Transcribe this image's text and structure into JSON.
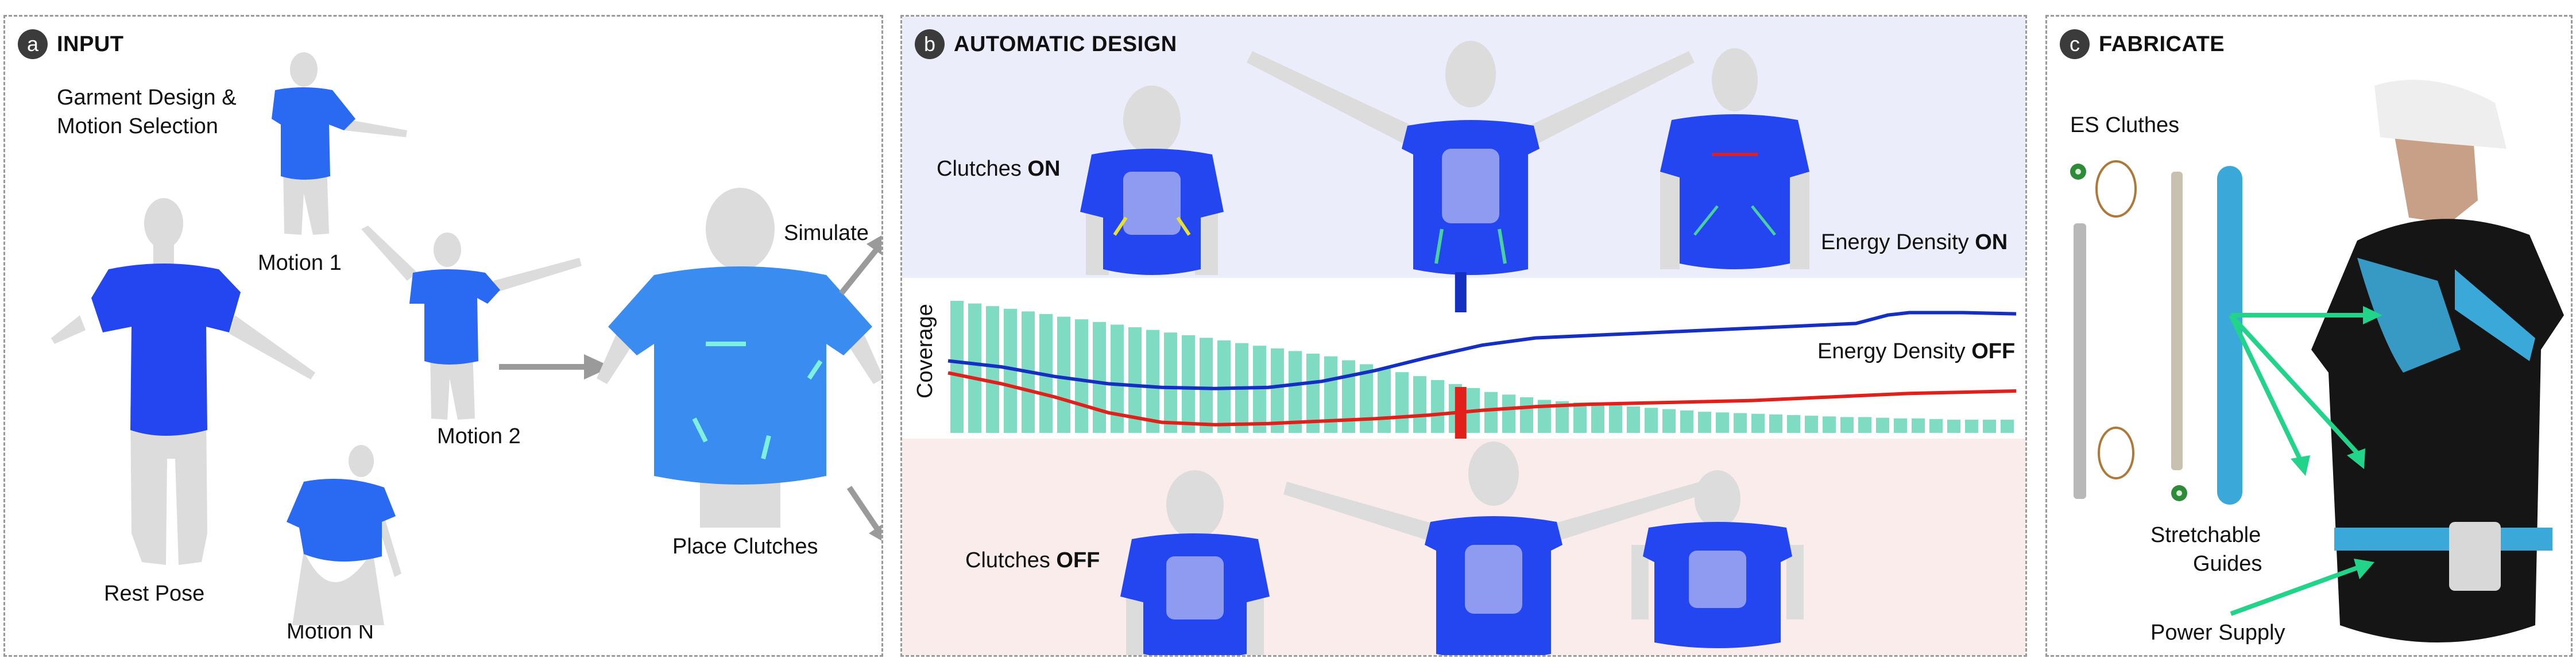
{
  "panels": {
    "a": {
      "letter": "a",
      "title": "INPUT",
      "garment_line1": "Garment Design &",
      "garment_line2": "Motion Selection",
      "rest_pose": "Rest Pose",
      "motion1": "Motion 1",
      "motion2": "Motion 2",
      "motionN": "Motion N",
      "place_clutches": "Place Clutches",
      "simulate": "Simulate"
    },
    "b": {
      "letter": "b",
      "title": "AUTOMATIC DESIGN",
      "clutches_on_prefix": "Clutches ",
      "clutches_on_state": "ON",
      "clutches_off_prefix": "Clutches ",
      "clutches_off_state": "OFF",
      "energy_on_prefix": "Energy Density ",
      "energy_on_state": "ON",
      "energy_off_prefix": "Energy Density ",
      "energy_off_state": "OFF",
      "coverage": "Coverage"
    },
    "c": {
      "letter": "c",
      "title": "FABRICATE",
      "es_cluthes": "ES Cluthes",
      "stretchable_line1": "Stretchable",
      "stretchable_line2": "Guides",
      "power_supply": "Power Supply"
    }
  },
  "colors": {
    "shirt": "#2446f0",
    "shirt_light": "#3a8cf0",
    "mannequin": "#dcdcdc",
    "on_line": "#1530c0",
    "off_line": "#e0201a",
    "bar": "#7fdcc3",
    "arrow": "#9a9a9a",
    "green_arrow": "#22d38a",
    "strap": "#3aa8d8",
    "bg_on": "#ecedfb",
    "bg_off": "#fbecec"
  },
  "chart_data": {
    "type": "bar+line",
    "ylabel": "Coverage",
    "bars": [
      1.0,
      0.98,
      0.96,
      0.94,
      0.92,
      0.9,
      0.88,
      0.86,
      0.84,
      0.82,
      0.8,
      0.78,
      0.76,
      0.74,
      0.72,
      0.7,
      0.68,
      0.66,
      0.64,
      0.62,
      0.6,
      0.58,
      0.55,
      0.52,
      0.49,
      0.46,
      0.43,
      0.4,
      0.37,
      0.34,
      0.31,
      0.29,
      0.27,
      0.25,
      0.24,
      0.23,
      0.22,
      0.21,
      0.2,
      0.19,
      0.18,
      0.17,
      0.16,
      0.155,
      0.15,
      0.145,
      0.14,
      0.135,
      0.13,
      0.125,
      0.12,
      0.12,
      0.115,
      0.11,
      0.11,
      0.105,
      0.1,
      0.1,
      0.1,
      0.1
    ],
    "series": [
      {
        "name": "Energy Density ON",
        "x": [
          0,
          0.05,
          0.1,
          0.15,
          0.2,
          0.25,
          0.3,
          0.35,
          0.4,
          0.45,
          0.5,
          0.55,
          0.6,
          0.65,
          0.7,
          0.75,
          0.8,
          0.85,
          0.88,
          0.9,
          0.95,
          1.0
        ],
        "y": [
          0.55,
          0.5,
          0.42,
          0.36,
          0.33,
          0.32,
          0.33,
          0.38,
          0.47,
          0.58,
          0.68,
          0.74,
          0.76,
          0.78,
          0.8,
          0.82,
          0.84,
          0.86,
          0.93,
          0.95,
          0.95,
          0.94
        ]
      },
      {
        "name": "Energy Density OFF",
        "x": [
          0,
          0.05,
          0.1,
          0.15,
          0.2,
          0.25,
          0.3,
          0.35,
          0.4,
          0.45,
          0.5,
          0.55,
          0.6,
          0.65,
          0.7,
          0.75,
          0.8,
          0.85,
          0.9,
          0.95,
          1.0
        ],
        "y": [
          0.45,
          0.36,
          0.25,
          0.12,
          0.04,
          0.02,
          0.03,
          0.05,
          0.07,
          0.1,
          0.14,
          0.17,
          0.19,
          0.2,
          0.21,
          0.22,
          0.24,
          0.26,
          0.28,
          0.29,
          0.3
        ]
      }
    ],
    "selected_x": 0.48
  }
}
